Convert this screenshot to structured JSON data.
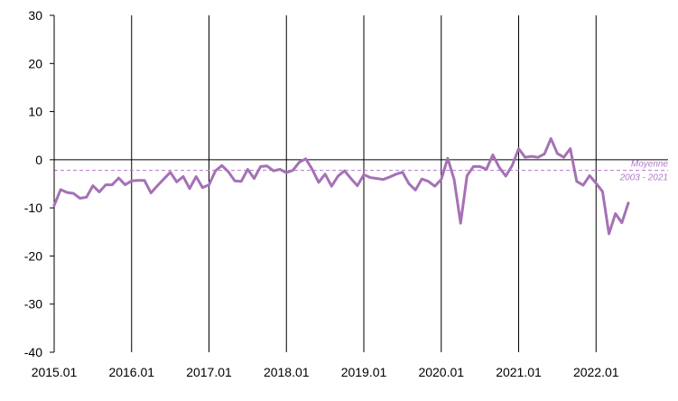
{
  "chart_data": {
    "type": "line",
    "ylim": [
      -40,
      30
    ],
    "y_ticks": [
      "30",
      "20",
      "10",
      "0",
      "-10",
      "-20",
      "-30",
      "-40"
    ],
    "x_ticks": [
      "2015.01",
      "2016.01",
      "2017.01",
      "2018.01",
      "2019.01",
      "2020.01",
      "2021.01",
      "2022.01"
    ],
    "grid": "vertical lines at each year start",
    "series": [
      {
        "color": "#a571b6",
        "start": "2015.01",
        "frequency": "monthly",
        "values": [
          -9.5,
          -6.2,
          -6.8,
          -7.0,
          -8.0,
          -7.8,
          -5.4,
          -6.7,
          -5.2,
          -5.2,
          -3.8,
          -5.2,
          -4.4,
          -4.3,
          -4.3,
          -6.9,
          -5.4,
          -4.0,
          -2.6,
          -4.6,
          -3.5,
          -6.0,
          -3.5,
          -5.8,
          -5.2,
          -2.3,
          -1.2,
          -2.5,
          -4.4,
          -4.5,
          -2.0,
          -3.9,
          -1.4,
          -1.3,
          -2.3,
          -2.0,
          -2.7,
          -2.2,
          -0.5,
          0.2,
          -2.0,
          -4.7,
          -3.0,
          -5.5,
          -3.4,
          -2.3,
          -3.9,
          -5.4,
          -3.1,
          -3.7,
          -3.9,
          -4.1,
          -3.6,
          -3.0,
          -2.6,
          -5.0,
          -6.3,
          -4.0,
          -4.5,
          -5.5,
          -4.1,
          0.3,
          -4.1,
          -13.2,
          -3.3,
          -1.4,
          -1.4,
          -2.0,
          1.0,
          -1.6,
          -3.4,
          -1.2,
          2.3,
          0.5,
          0.7,
          0.5,
          1.2,
          4.4,
          1.3,
          0.5,
          2.3,
          -4.5,
          -5.3,
          -3.3,
          -4.9,
          -6.6,
          -15.4,
          -11.2,
          -13.1,
          -9.0
        ]
      }
    ],
    "reference_line": {
      "value": -2.2,
      "label_line1": "Moyenne",
      "label_line2": "2003 - 2021",
      "color": "#b478c8",
      "style": "dashed"
    }
  }
}
